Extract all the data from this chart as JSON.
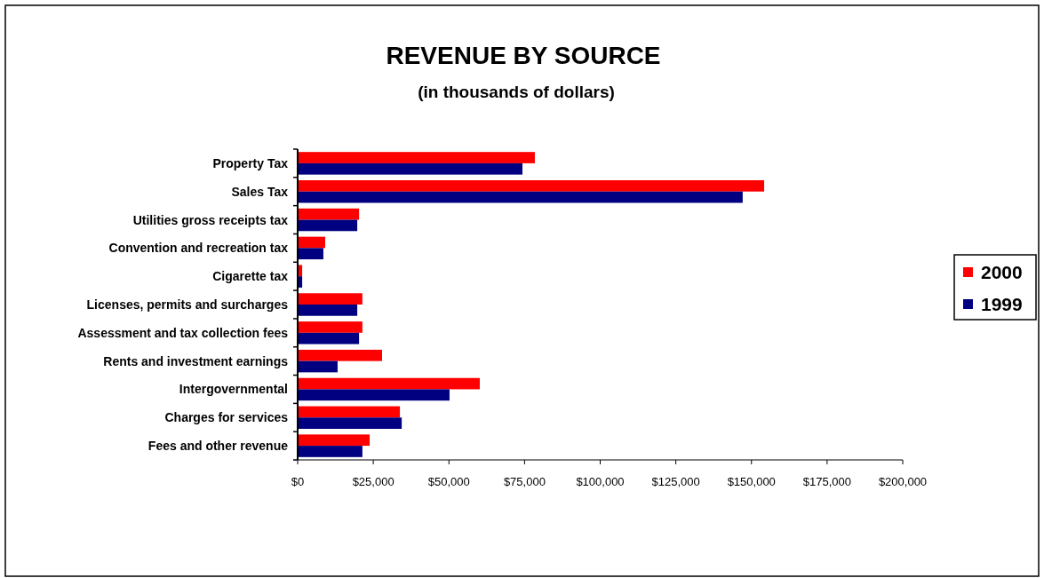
{
  "chart_data": {
    "type": "bar",
    "orientation": "horizontal",
    "title": "REVENUE BY SOURCE",
    "subtitle": "(in thousands of dollars)",
    "categories": [
      "Property Tax",
      "Sales Tax",
      "Utilities gross receipts tax",
      "Convention and recreation tax",
      "Cigarette tax",
      "Licenses, permits and surcharges",
      "Assessment and tax collection fees",
      "Rents and investment earnings",
      "Intergovernmental",
      "Charges for services",
      "Fees and other revenue"
    ],
    "series": [
      {
        "name": "2000",
        "color": "#ff0000",
        "values": [
          78400,
          154200,
          20300,
          9100,
          1500,
          21400,
          21400,
          27900,
          60200,
          33800,
          23800
        ]
      },
      {
        "name": "1999",
        "color": "#000080",
        "values": [
          74300,
          147100,
          19700,
          8500,
          1500,
          19700,
          20300,
          13200,
          50200,
          34400,
          21400
        ]
      }
    ],
    "xlim": [
      0,
      200000
    ],
    "xticks": [
      {
        "value": 0,
        "label": "$0"
      },
      {
        "value": 25000,
        "label": "$25,000"
      },
      {
        "value": 50000,
        "label": "$50,000"
      },
      {
        "value": 75000,
        "label": "$75,000"
      },
      {
        "value": 100000,
        "label": "$100,000"
      },
      {
        "value": 125000,
        "label": "$125,000"
      },
      {
        "value": 150000,
        "label": "$150,000"
      },
      {
        "value": 175000,
        "label": "$175,000"
      },
      {
        "value": 200000,
        "label": "$200,000"
      }
    ],
    "grid": false,
    "legend": "right"
  }
}
